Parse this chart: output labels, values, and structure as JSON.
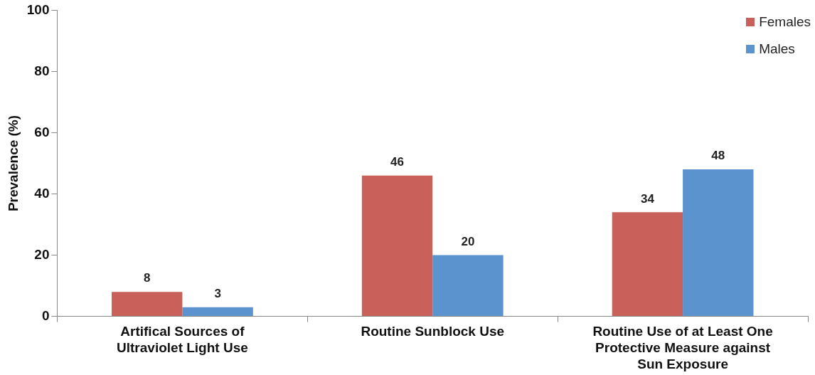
{
  "chart_data": {
    "type": "bar",
    "ylabel": "Prevalence (%)",
    "categories": [
      "Artifical Sources of Ultraviolet Light Use",
      "Routine Sunblock Use",
      "Routine Use of at Least One Protective Measure against Sun Exposure"
    ],
    "series": [
      {
        "name": "Females",
        "color": "#c9605a",
        "values": [
          8,
          46,
          34
        ]
      },
      {
        "name": "Males",
        "color": "#5b93cf",
        "values": [
          3,
          20,
          48
        ]
      }
    ],
    "ylim": [
      0,
      100
    ],
    "yticks": [
      0,
      20,
      40,
      60,
      80,
      100
    ],
    "grid": false,
    "legend": "top right",
    "data_labels": true
  }
}
